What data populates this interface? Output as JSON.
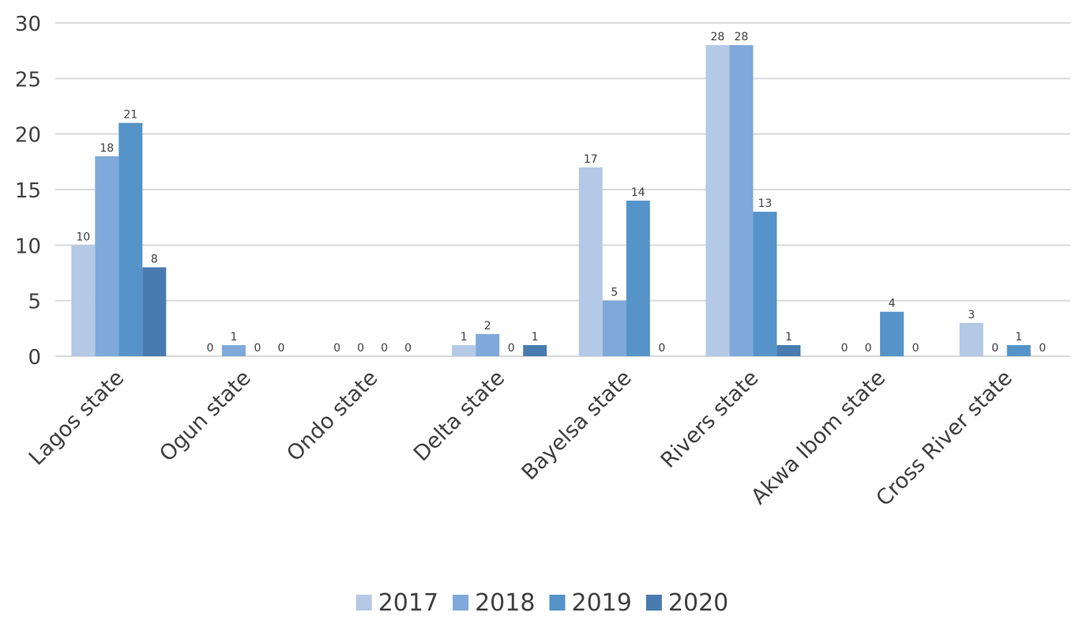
{
  "chart_data": {
    "type": "bar",
    "title": "",
    "xlabel": "",
    "ylabel": "",
    "ylim": [
      0,
      30
    ],
    "yticks": [
      0,
      5,
      10,
      15,
      20,
      25,
      30
    ],
    "grid": true,
    "legend_position": "bottom",
    "categories": [
      "Lagos state",
      "Ogun state",
      "Ondo state",
      "Delta state",
      "Bayelsa state",
      "Rivers state",
      "Akwa Ibom state",
      "Cross River state"
    ],
    "series": [
      {
        "name": "2017",
        "color": "#b4c9e5",
        "values": [
          10,
          0,
          0,
          1,
          17,
          28,
          0,
          3
        ]
      },
      {
        "name": "2018",
        "color": "#7ea9da",
        "values": [
          18,
          1,
          0,
          2,
          5,
          28,
          0,
          0
        ]
      },
      {
        "name": "2019",
        "color": "#5593c8",
        "values": [
          21,
          0,
          0,
          0,
          14,
          13,
          4,
          1
        ]
      },
      {
        "name": "2020",
        "color": "#4a7bb0",
        "values": [
          8,
          0,
          0,
          1,
          0,
          1,
          0,
          0
        ]
      }
    ]
  }
}
